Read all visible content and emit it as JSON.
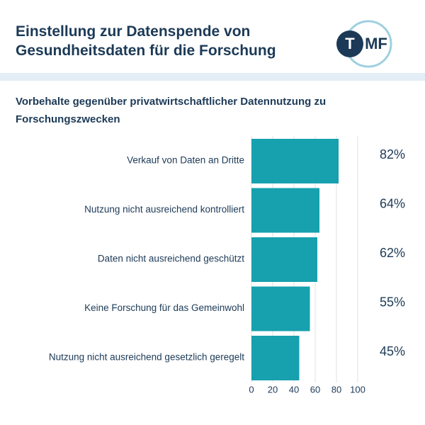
{
  "logo": [
    "T",
    "MF"
  ],
  "chart_data": {
    "type": "barh",
    "title": "Einstellung zur Datenspende von Gesundheitsdaten für die Forschung",
    "subtitle": "Vorbehalte gegenüber privatwirtschaftlicher Datennutzung zu Forschungszwecken",
    "categories": [
      "Verkauf von Daten an Dritte",
      "Nutzung nicht ausreichend kontrolliert",
      "Daten nicht ausreichend geschützt",
      "Keine Forschung für das Gemeinwohl",
      "Nutzung nicht ausreichend gesetzlich geregelt"
    ],
    "values": [
      82,
      64,
      62,
      55,
      45
    ],
    "value_labels": [
      "82%",
      "64%",
      "62%",
      "55%",
      "45%"
    ],
    "color": "#17a0ae",
    "xlim": [
      0,
      100
    ],
    "xticks": [
      0,
      20,
      40,
      60,
      80,
      100
    ],
    "grid": true
  }
}
